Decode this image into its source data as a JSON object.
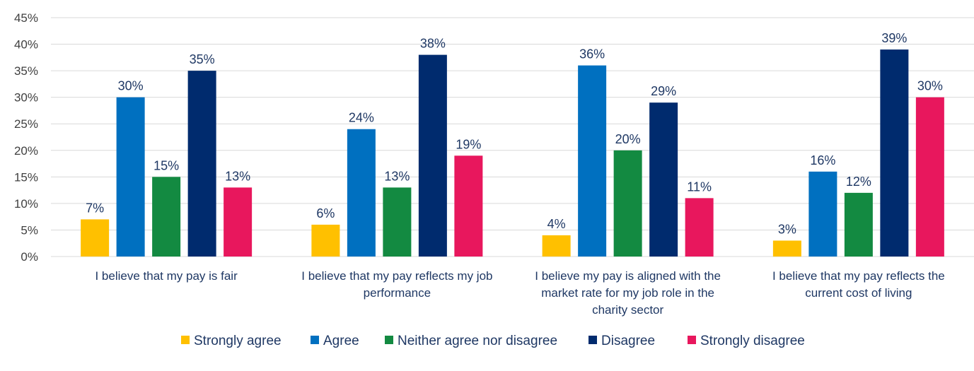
{
  "chart_data": {
    "type": "bar",
    "title": "",
    "xlabel": "",
    "ylabel": "",
    "ylim": [
      0,
      45
    ],
    "y_ticks": [
      0,
      5,
      10,
      15,
      20,
      25,
      30,
      35,
      40,
      45
    ],
    "y_tick_labels": [
      "0%",
      "5%",
      "10%",
      "15%",
      "20%",
      "25%",
      "30%",
      "35%",
      "40%",
      "45%"
    ],
    "grid": true,
    "legend_position": "bottom",
    "categories": [
      [
        "I believe that my pay is fair"
      ],
      [
        "I believe that my pay reflects my job",
        "performance"
      ],
      [
        "I believe my pay is aligned with the",
        "market rate for my job role in the",
        "charity sector"
      ],
      [
        "I believe that my pay reflects the",
        "current cost of living"
      ]
    ],
    "series": [
      {
        "name": "Strongly agree",
        "color": "#ffc000",
        "values": [
          7,
          6,
          4,
          3
        ],
        "labels": [
          "7%",
          "6%",
          "4%",
          "3%"
        ]
      },
      {
        "name": "Agree",
        "color": "#0070c0",
        "values": [
          30,
          24,
          36,
          16
        ],
        "labels": [
          "30%",
          "24%",
          "36%",
          "16%"
        ]
      },
      {
        "name": "Neither agree nor disagree",
        "color": "#138a41",
        "values": [
          15,
          13,
          20,
          12
        ],
        "labels": [
          "15%",
          "13%",
          "20%",
          "12%"
        ]
      },
      {
        "name": "Disagree",
        "color": "#002b6e",
        "values": [
          35,
          38,
          29,
          39
        ],
        "labels": [
          "35%",
          "38%",
          "29%",
          "39%"
        ]
      },
      {
        "name": "Strongly disagree",
        "color": "#e8175d",
        "values": [
          13,
          19,
          11,
          30
        ],
        "labels": [
          "13%",
          "19%",
          "11%",
          "30%"
        ]
      }
    ]
  }
}
